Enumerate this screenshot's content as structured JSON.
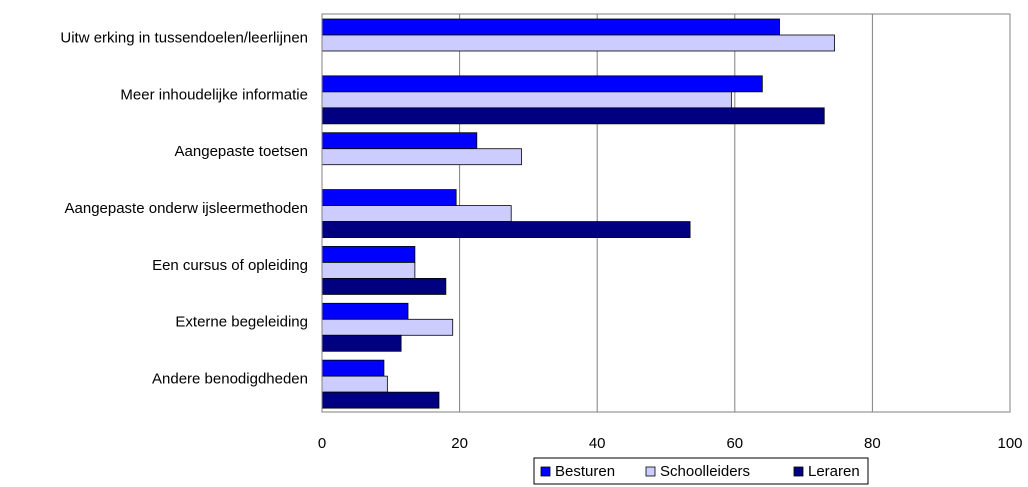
{
  "chart_data": {
    "type": "bar",
    "orientation": "horizontal",
    "categories": [
      "Uitw erking in tussendoelen/leerlijnen",
      "Meer inhoudelijke informatie",
      "Aangepaste toetsen",
      "Aangepaste onderw ijsleermethoden",
      "Een cursus of opleiding",
      "Externe begeleiding",
      "Andere benodigdheden"
    ],
    "series": [
      {
        "name": "Besturen",
        "color": "#0000ff",
        "values": [
          66.5,
          64,
          22.5,
          19.5,
          13.5,
          12.5,
          9
        ]
      },
      {
        "name": "Schoolleiders",
        "color": "#ccccff",
        "values": [
          74.5,
          59.5,
          29,
          27.5,
          13.5,
          19,
          9.5
        ]
      },
      {
        "name": "Leraren",
        "color": "#000080",
        "values": [
          null,
          73,
          null,
          53.5,
          18,
          11.5,
          17
        ]
      }
    ],
    "x_ticks": [
      "0",
      "20",
      "40",
      "60",
      "80",
      "100"
    ],
    "xlim": [
      0,
      100
    ],
    "grid": "vertical",
    "legend_position": "bottom"
  }
}
